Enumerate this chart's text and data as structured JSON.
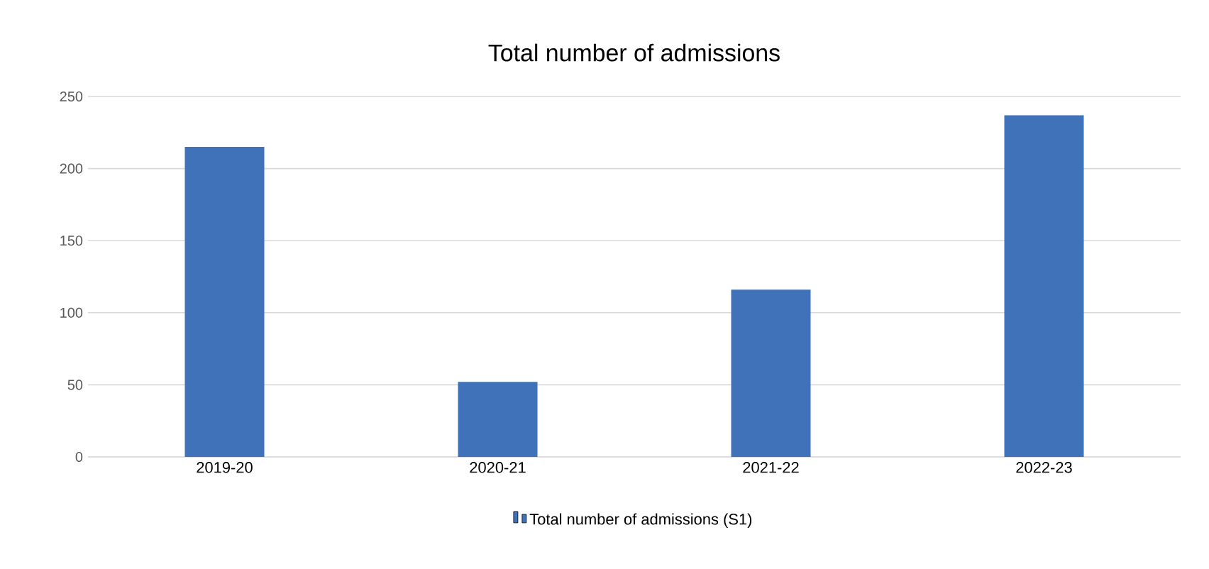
{
  "chart_data": {
    "type": "bar",
    "title": "Total number of admissions",
    "categories": [
      "2019-20",
      "2020-21",
      "2021-22",
      "2022-23"
    ],
    "series": [
      {
        "name": "Total number of admissions (S1)",
        "color": "#3f72b9",
        "values": [
          215,
          52,
          116,
          237
        ]
      }
    ],
    "ylim": [
      0,
      250
    ],
    "yticks": [
      0,
      50,
      100,
      150,
      200,
      250
    ],
    "grid": "y",
    "legend": "bottom"
  }
}
